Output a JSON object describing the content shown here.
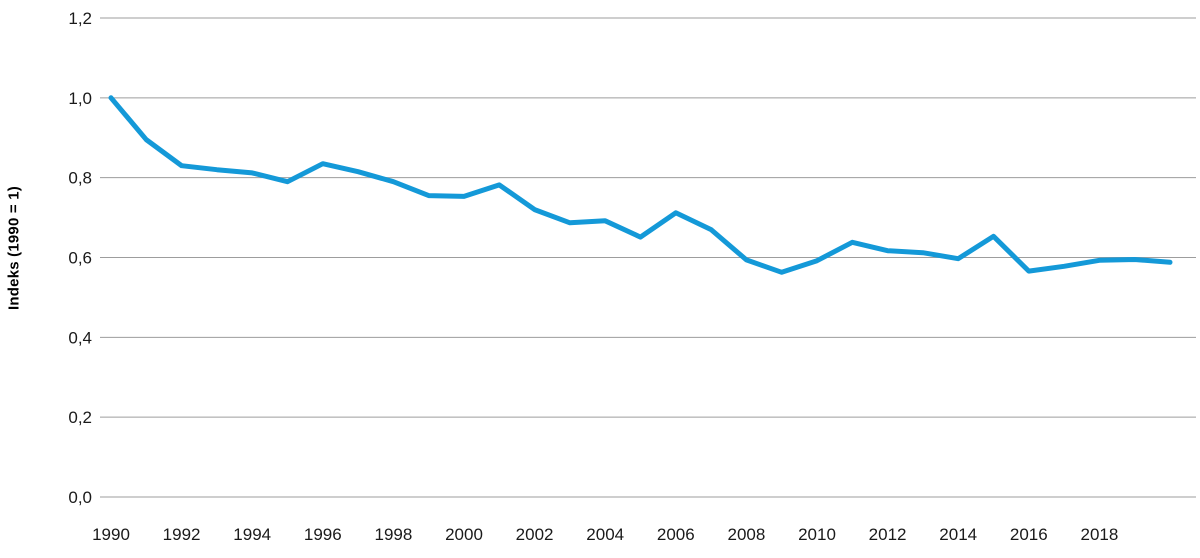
{
  "chart_data": {
    "type": "line",
    "title": "",
    "xlabel": "",
    "ylabel": "Indeks (1990 = 1)",
    "ylim": [
      0,
      1.2
    ],
    "grid": "horizontal",
    "legend": "none",
    "line_color": "#1499d8",
    "x": [
      1990,
      1991,
      1992,
      1993,
      1994,
      1995,
      1996,
      1997,
      1998,
      1999,
      2000,
      2001,
      2002,
      2003,
      2004,
      2005,
      2006,
      2007,
      2008,
      2009,
      2010,
      2011,
      2012,
      2013,
      2014,
      2015,
      2016,
      2017,
      2018,
      2019,
      2020
    ],
    "series": [
      {
        "name": "Indeks (1990 = 1)",
        "values": [
          1.0,
          0.895,
          0.83,
          0.82,
          0.812,
          0.79,
          0.835,
          0.815,
          0.79,
          0.755,
          0.753,
          0.782,
          0.72,
          0.687,
          0.692,
          0.651,
          0.712,
          0.67,
          0.594,
          0.563,
          0.592,
          0.638,
          0.617,
          0.612,
          0.597,
          0.653,
          0.566,
          0.578,
          0.593,
          0.595,
          0.588
        ]
      }
    ],
    "yticks": [
      {
        "value": 0.0,
        "label": "0,0"
      },
      {
        "value": 0.2,
        "label": "0,2"
      },
      {
        "value": 0.4,
        "label": "0,4"
      },
      {
        "value": 0.6,
        "label": "0,6"
      },
      {
        "value": 0.8,
        "label": "0,8"
      },
      {
        "value": 1.0,
        "label": "1,0"
      },
      {
        "value": 1.2,
        "label": "1,2"
      }
    ],
    "xticks": [
      {
        "year": 1990,
        "label": "1990"
      },
      {
        "year": 1992,
        "label": "1992"
      },
      {
        "year": 1994,
        "label": "1994"
      },
      {
        "year": 1996,
        "label": "1996"
      },
      {
        "year": 1998,
        "label": "1998"
      },
      {
        "year": 2000,
        "label": "2000"
      },
      {
        "year": 2002,
        "label": "2002"
      },
      {
        "year": 2004,
        "label": "2004"
      },
      {
        "year": 2006,
        "label": "2006"
      },
      {
        "year": 2008,
        "label": "2008"
      },
      {
        "year": 2010,
        "label": "2010"
      },
      {
        "year": 2012,
        "label": "2012"
      },
      {
        "year": 2014,
        "label": "2014"
      },
      {
        "year": 2016,
        "label": "2016"
      },
      {
        "year": 2018,
        "label": "2018"
      }
    ]
  }
}
